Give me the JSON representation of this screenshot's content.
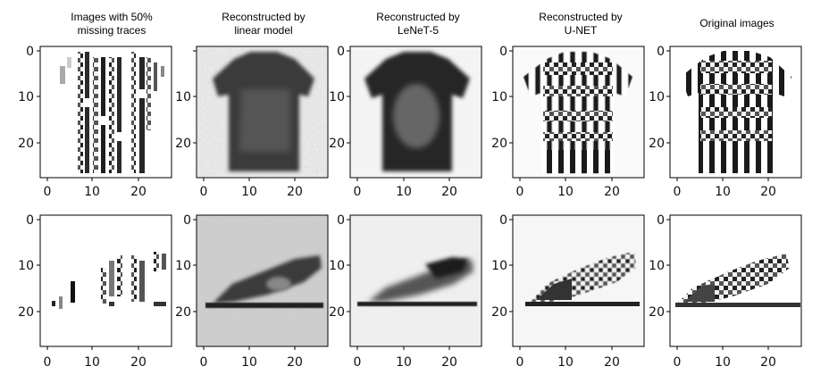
{
  "panel_titles": [
    "Images with 50%\nmissing traces",
    "Reconstructed by\nlinear model",
    "Reconstructed by\nLeNeT-5",
    "Reconstructed by\nU-NET",
    "Original images"
  ],
  "axis_ticks": {
    "x": [
      "0",
      "10",
      "20"
    ],
    "y": [
      "0",
      "10",
      "20"
    ]
  },
  "colors": {
    "background": "#ffffff",
    "axis": "#000000"
  }
}
